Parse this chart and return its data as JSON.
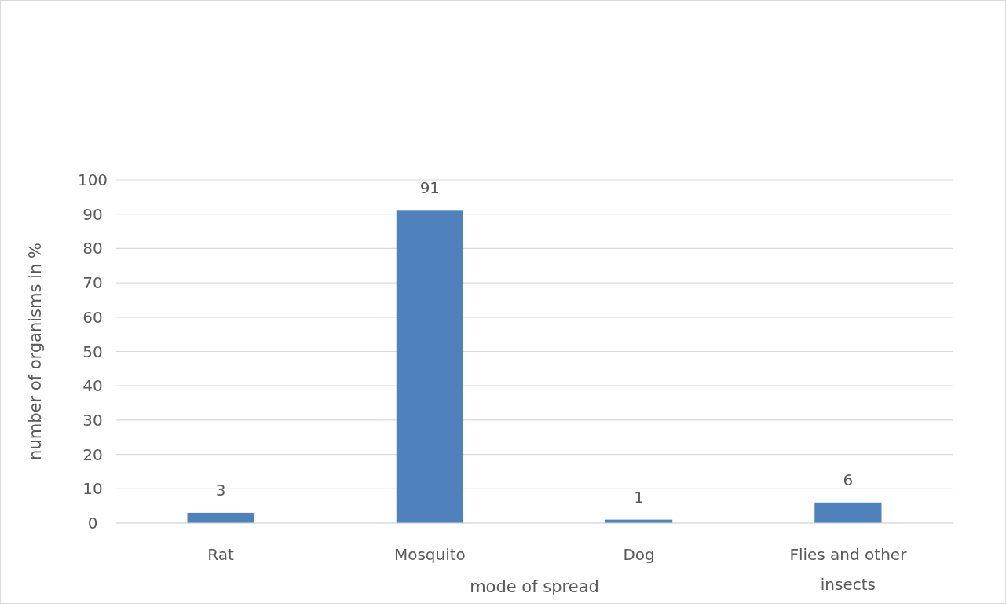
{
  "chart_data": {
    "type": "bar",
    "xlabel": "mode of spread",
    "ylabel": "number of organisms in %",
    "categories": [
      "Rat",
      "Mosquito",
      "Dog",
      "Flies and other insects"
    ],
    "values": [
      3,
      91,
      1,
      6
    ],
    "color": "#4f81bd",
    "ylim": [
      0,
      100
    ],
    "yticks": [
      0,
      10,
      20,
      30,
      40,
      50,
      60,
      70,
      80,
      90,
      100
    ],
    "grid": "y",
    "data_labels": true
  }
}
